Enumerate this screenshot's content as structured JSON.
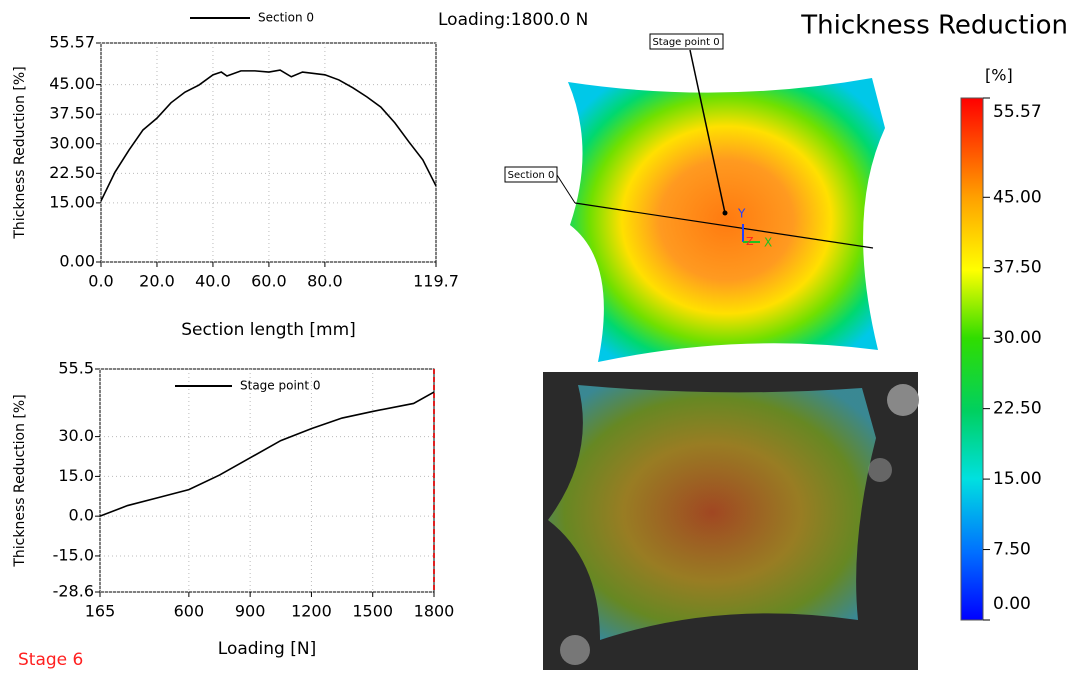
{
  "header": {
    "loading": "Loading:1800.0 N",
    "title": "Thickness Reduction",
    "stage": "Stage 6"
  },
  "chart_data": [
    {
      "type": "line",
      "xlabel": "Section length [mm]",
      "ylabel": "Thickness Reduction [%]",
      "x": [
        0,
        5,
        10,
        15,
        20,
        25,
        30,
        35,
        40,
        43,
        45,
        50,
        55,
        60,
        64,
        68,
        72,
        80,
        85,
        90,
        95,
        100,
        105,
        110,
        115,
        119.7
      ],
      "series": [
        {
          "name": "Section 0",
          "color": "#000000",
          "values": [
            15.5,
            22.8,
            28.4,
            33.5,
            36.5,
            40.4,
            43.1,
            44.9,
            47.5,
            48.2,
            47.2,
            48.5,
            48.5,
            48.2,
            48.7,
            47,
            48.2,
            47.5,
            46.2,
            44.2,
            41.9,
            39.3,
            35.3,
            30.5,
            25.9,
            19.3
          ]
        }
      ],
      "xlim": [
        0,
        119.7
      ],
      "ylim": [
        0,
        55.57
      ],
      "xticks": [
        {
          "value": 0,
          "label": "0.0"
        },
        {
          "value": 20,
          "label": "20.0"
        },
        {
          "value": 40,
          "label": "40.0"
        },
        {
          "value": 60,
          "label": "60.0"
        },
        {
          "value": 80,
          "label": "80.0"
        },
        119.7
      ],
      "yticks": [
        {
          "value": 0,
          "label": "0.00"
        },
        {
          "value": 15,
          "label": "15.00"
        },
        {
          "value": 22.5,
          "label": "22.50"
        },
        {
          "value": 30,
          "label": "30.00"
        },
        {
          "value": 37.5,
          "label": "37.50"
        },
        {
          "value": 45,
          "label": "45.00"
        },
        55.57
      ],
      "grid": true
    },
    {
      "type": "line",
      "xlabel": "Loading [N]",
      "ylabel": "Thickness Reduction [%]",
      "x": [
        165,
        300,
        450,
        600,
        750,
        900,
        1050,
        1200,
        1350,
        1500,
        1700,
        1800
      ],
      "series": [
        {
          "name": "Stage point 0",
          "color": "#000000",
          "values": [
            0,
            4,
            7,
            10,
            15.5,
            22,
            28.5,
            33,
            37,
            39.5,
            42.5,
            46.8
          ]
        }
      ],
      "xlim": [
        165,
        1800
      ],
      "ylim": [
        -28.6,
        55.5
      ],
      "xticks": [
        165,
        600,
        900,
        1200,
        1500,
        1800
      ],
      "yticks": [
        -28.6,
        {
          "value": -15,
          "label": "-15.0"
        },
        {
          "value": 0,
          "label": "0.0"
        },
        {
          "value": 15,
          "label": "15.0"
        },
        {
          "value": 30,
          "label": "30.0"
        },
        55.5
      ],
      "grid": true,
      "marker_x": 1800
    }
  ],
  "colorbar": {
    "title": "[%]",
    "lim": [
      0,
      55.57
    ],
    "ticks": [
      {
        "value": 0,
        "label": "0.00"
      },
      {
        "value": 7.5,
        "label": "7.50"
      },
      {
        "value": 15,
        "label": "15.00"
      },
      {
        "value": 22.5,
        "label": "22.50"
      },
      {
        "value": 30,
        "label": "30.00"
      },
      {
        "value": 37.5,
        "label": "37.50"
      },
      {
        "value": 45,
        "label": "45.00"
      },
      55.57
    ]
  },
  "map": {
    "axis_y": "Y",
    "axis_x": "X",
    "axis_z": "Z"
  }
}
